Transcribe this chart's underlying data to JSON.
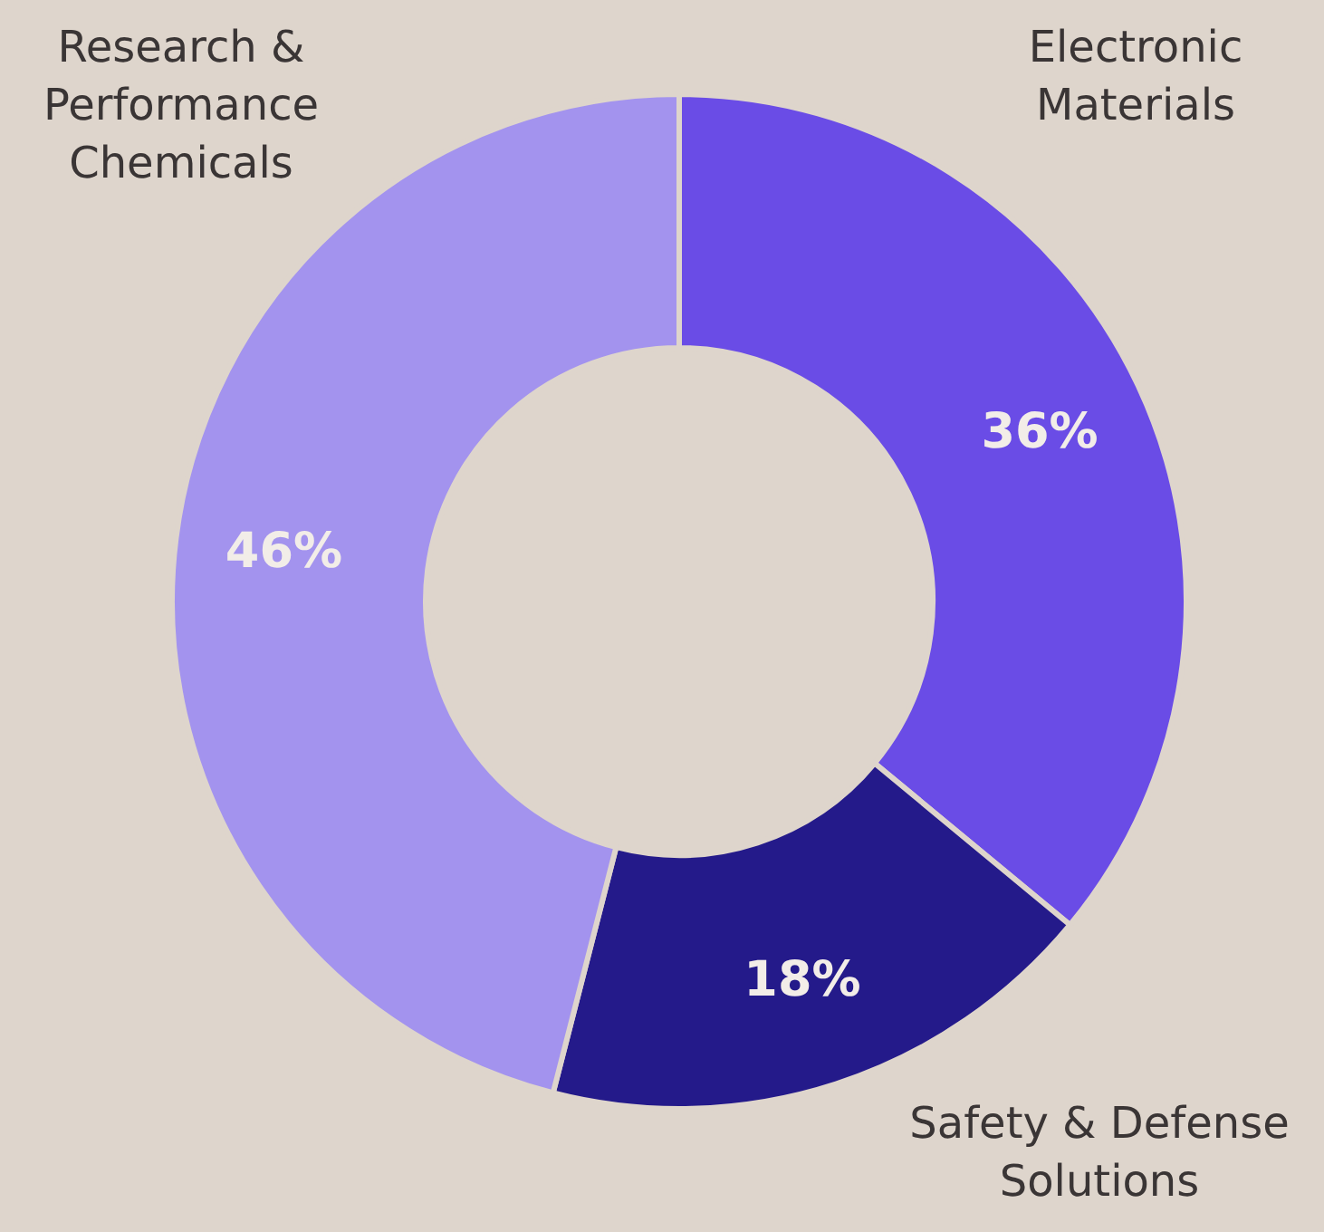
{
  "chart_data": {
    "type": "donut",
    "categories": [
      "Electronic Materials",
      "Safety & Defense Solutions",
      "Research & Performance Chemicals"
    ],
    "values": [
      36,
      18,
      46
    ],
    "colors": [
      "#6a4ce6",
      "#241a8a",
      "#a393ee"
    ],
    "value_labels": [
      "36%",
      "18%",
      "46%"
    ]
  }
}
